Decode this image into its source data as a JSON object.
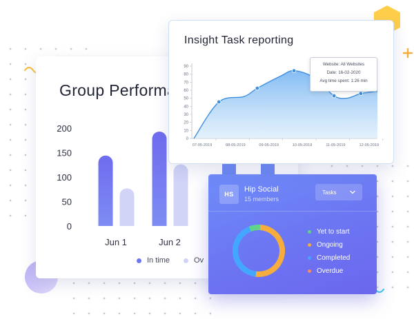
{
  "group_performance": {
    "title": "Group Performance",
    "chart_data": {
      "type": "bar",
      "categories": [
        "Jun 1",
        "Jun 2"
      ],
      "series": [
        {
          "name": "In time",
          "values": [
            144,
            193
          ],
          "color": "#6f77ef"
        },
        {
          "name": "Overdue",
          "values": [
            77,
            126
          ],
          "color": "#d2d4f7"
        }
      ],
      "y_ticks": [
        "200",
        "150",
        "100",
        "50",
        "0"
      ],
      "ylim": [
        0,
        200
      ],
      "legend_position": "bottom"
    },
    "legend": [
      "In time",
      "Ov"
    ]
  },
  "insight": {
    "title": "Insight Task reporting",
    "tooltip": {
      "website": "Website: All Websites",
      "date": "Date: 16-02-2020",
      "time": "Avg time spent: 1:26 min"
    },
    "chart_data": {
      "type": "area",
      "x": [
        "07-05-2019",
        "08-05-2019",
        "09-05-2019",
        "10-05-2019",
        "11-05-2019",
        "12-05-2019"
      ],
      "points": [
        {
          "x": 0.0,
          "y": 0
        },
        {
          "x": 0.75,
          "y": 48
        },
        {
          "x": 1.5,
          "y": 55
        },
        {
          "x": 1.9,
          "y": 66
        },
        {
          "x": 2.6,
          "y": 82
        },
        {
          "x": 3.0,
          "y": 89
        },
        {
          "x": 3.6,
          "y": 80
        },
        {
          "x": 4.2,
          "y": 56
        },
        {
          "x": 4.6,
          "y": 53
        },
        {
          "x": 5.0,
          "y": 59
        },
        {
          "x": 5.5,
          "y": 62
        }
      ],
      "markers": [
        0.75,
        1.9,
        3.0,
        4.2,
        5.0
      ],
      "y_ticks": [
        "90",
        "80",
        "70",
        "60",
        "50",
        "40",
        "30",
        "20",
        "10",
        "0"
      ],
      "ylim": [
        0,
        95
      ],
      "color": "#3e8fe0"
    }
  },
  "team": {
    "avatar": "HS",
    "name": "Hip Social",
    "members": "15 members",
    "select_value": "Tasks",
    "chevron_icon": "chevron-down-icon",
    "chart_data": {
      "type": "pie",
      "slices": [
        {
          "name": "Yet to start",
          "value": 7,
          "color": "#5fd48a"
        },
        {
          "name": "Ongoing",
          "value": 51,
          "color": "#f6ad3b"
        },
        {
          "name": "Completed",
          "value": 42,
          "color": "#43a7ff"
        },
        {
          "name": "Overdue",
          "value": 0,
          "color": "#ff8a5b"
        }
      ]
    }
  }
}
